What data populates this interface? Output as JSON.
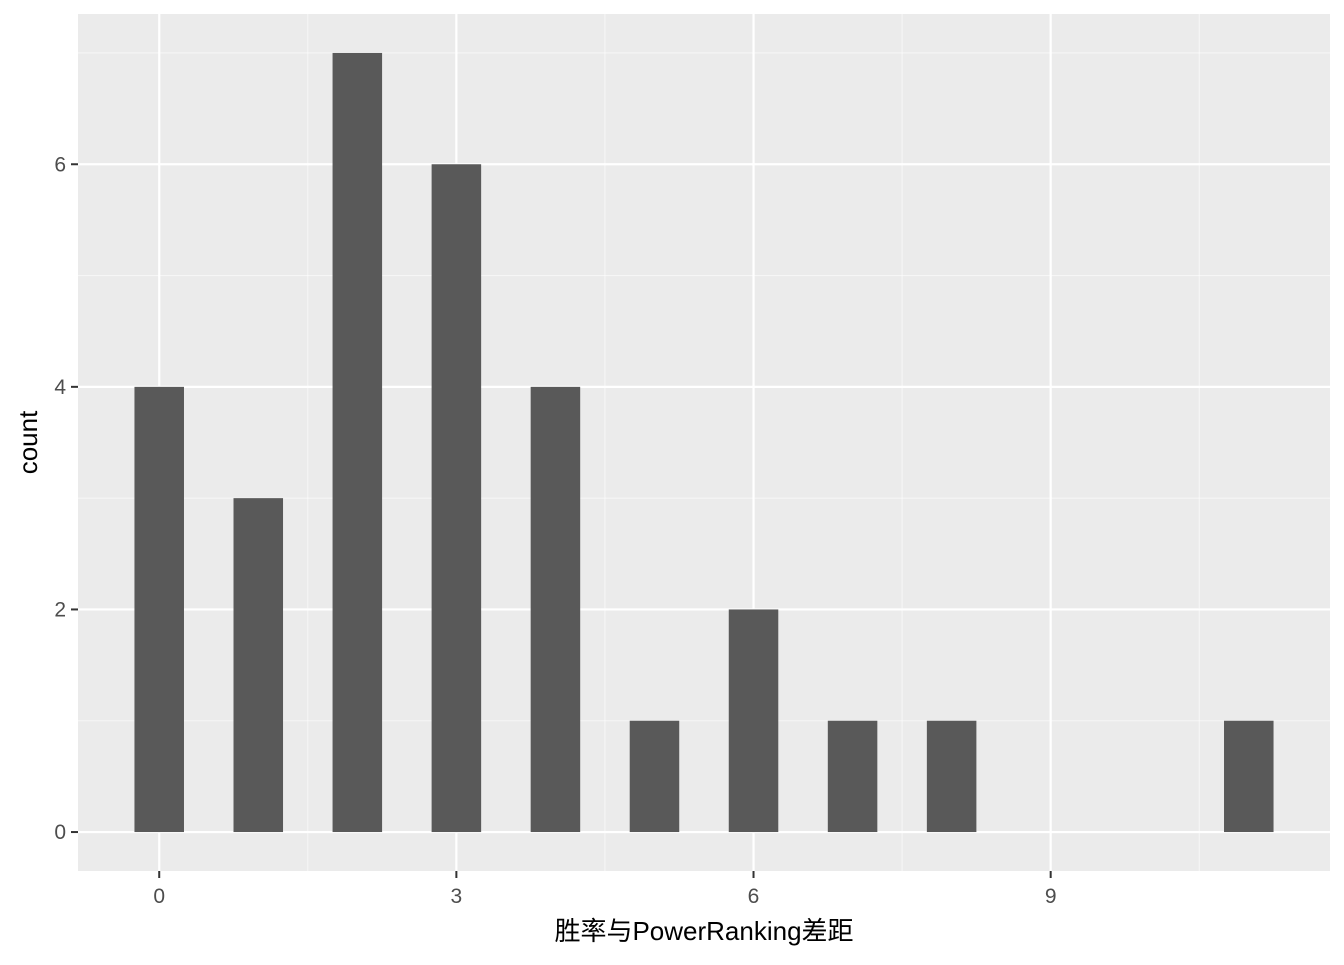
{
  "chart_data": {
    "type": "bar",
    "title": "",
    "xlabel": "胜率与PowerRanking差距",
    "ylabel": "count",
    "x": [
      0,
      1,
      2,
      3,
      4,
      5,
      6,
      7,
      8,
      11
    ],
    "values": [
      4,
      3,
      7,
      6,
      4,
      1,
      2,
      1,
      1,
      1
    ],
    "bar_width": 0.5,
    "xlim": [
      -0.82,
      11.82
    ],
    "ylim": [
      -0.35,
      7.35
    ],
    "x_ticks": [
      0,
      3,
      6,
      9
    ],
    "x_tick_labels": [
      "0",
      "3",
      "6",
      "9"
    ],
    "y_ticks": [
      0,
      2,
      4,
      6
    ],
    "y_tick_labels": [
      "0",
      "2",
      "4",
      "6"
    ],
    "grid": true,
    "legend": "none",
    "colors": {
      "panel_background": "#ebebeb",
      "grid_major": "#ffffff",
      "bar_fill": "#595959",
      "tick_label": "#4d4d4d",
      "axis_title": "#000000"
    }
  }
}
